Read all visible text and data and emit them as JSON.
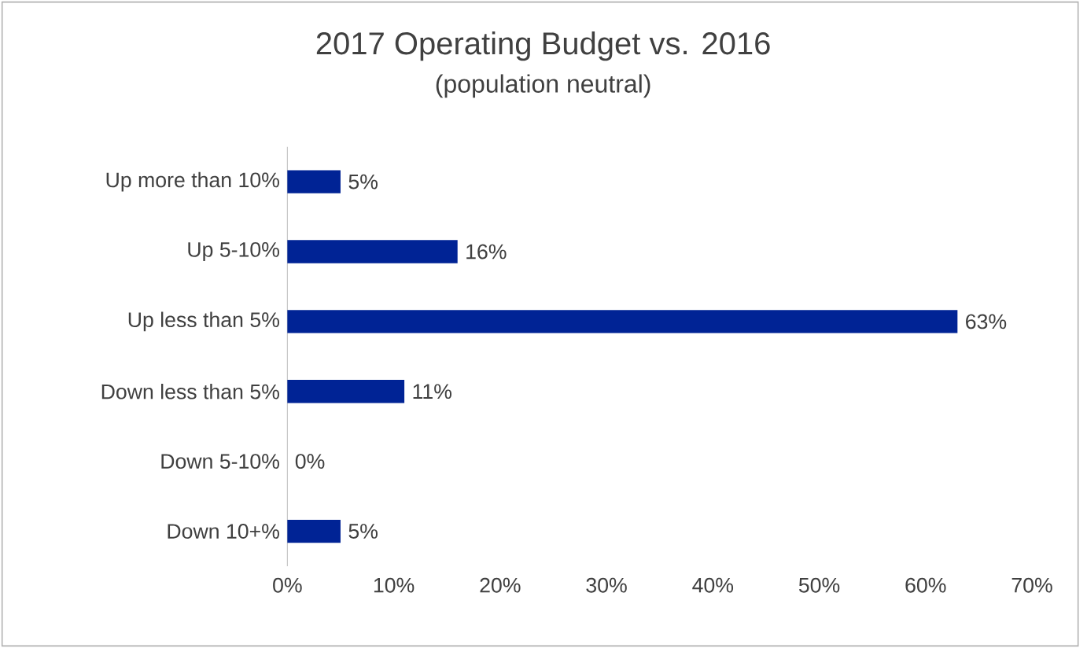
{
  "chart_data": {
    "type": "bar",
    "orientation": "horizontal",
    "title": "2017 Operating Budget vs. 2016",
    "subtitle": "(population neutral)",
    "categories": [
      "Up more than 10%",
      "Up 5-10%",
      "Up less than 5%",
      "Down less than 5%",
      "Down 5-10%",
      "Down 10+%"
    ],
    "values": [
      5,
      16,
      63,
      11,
      0,
      5
    ],
    "value_labels": [
      "5%",
      "16%",
      "63%",
      "11%",
      "0%",
      "5%"
    ],
    "color": "#002395",
    "xlim": [
      0,
      70
    ],
    "xticks": [
      {
        "value": 0,
        "label": "0%"
      },
      {
        "value": 10,
        "label": "10%"
      },
      {
        "value": 20,
        "label": "20%"
      },
      {
        "value": 30,
        "label": "30%"
      },
      {
        "value": 40,
        "label": "40%"
      },
      {
        "value": 50,
        "label": "50%"
      },
      {
        "value": 60,
        "label": "60%"
      },
      {
        "value": 70,
        "label": "70%"
      }
    ],
    "grid": false
  }
}
